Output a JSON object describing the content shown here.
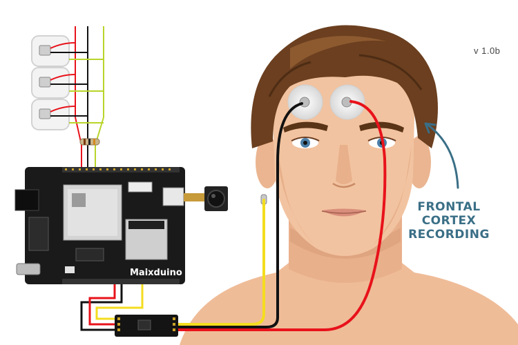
{
  "version": "v 1.0b",
  "annotation": {
    "lines": [
      "FRONTAL",
      "CORTEX",
      "RECORDING"
    ],
    "color": "#3a6f86"
  },
  "board": {
    "name": "Maixduino"
  },
  "colors": {
    "wire_red": "#e8121a",
    "wire_black": "#111111",
    "wire_yellow": "#f4dd1f",
    "wire_green": "#b9d42a",
    "skin": "#f2c3a0",
    "hair": "#6b3f1f",
    "pcb": "#1a1a1a"
  }
}
